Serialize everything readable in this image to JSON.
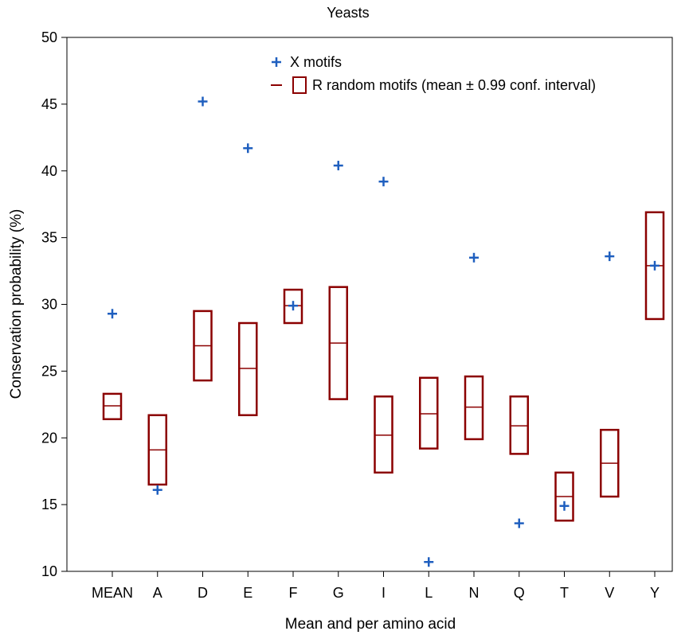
{
  "chart_data": {
    "type": "box",
    "title": "Yeasts",
    "xlabel": "Mean and per amino acid",
    "ylabel": "Conservation probability (%)",
    "ylim": [
      10,
      50
    ],
    "yticks": [
      10,
      15,
      20,
      25,
      30,
      35,
      40,
      45,
      50
    ],
    "grid": false,
    "legend_position": "top-center",
    "categories": [
      "MEAN",
      "A",
      "D",
      "E",
      "F",
      "G",
      "I",
      "L",
      "N",
      "Q",
      "T",
      "V",
      "Y"
    ],
    "series": [
      {
        "name": "X motifs",
        "kind": "point",
        "marker": "+",
        "color": "#1f5fbf",
        "values": [
          29.3,
          16.1,
          45.2,
          41.7,
          29.9,
          40.4,
          39.2,
          10.7,
          33.5,
          13.6,
          14.9,
          33.6,
          32.9
        ]
      },
      {
        "name": "R random motifs (mean ± 0.99 conf. interval)",
        "kind": "box",
        "color": "#8b0000",
        "means": [
          22.4,
          19.1,
          26.9,
          25.2,
          29.9,
          27.1,
          20.2,
          21.8,
          22.3,
          20.9,
          15.6,
          18.1,
          32.9
        ],
        "lows": [
          21.4,
          16.5,
          24.3,
          21.7,
          28.6,
          22.9,
          17.4,
          19.2,
          19.9,
          18.8,
          13.8,
          15.6,
          28.9
        ],
        "highs": [
          23.3,
          21.7,
          29.5,
          28.6,
          31.1,
          31.3,
          23.1,
          24.5,
          24.6,
          23.1,
          17.4,
          20.6,
          36.9
        ]
      }
    ]
  }
}
